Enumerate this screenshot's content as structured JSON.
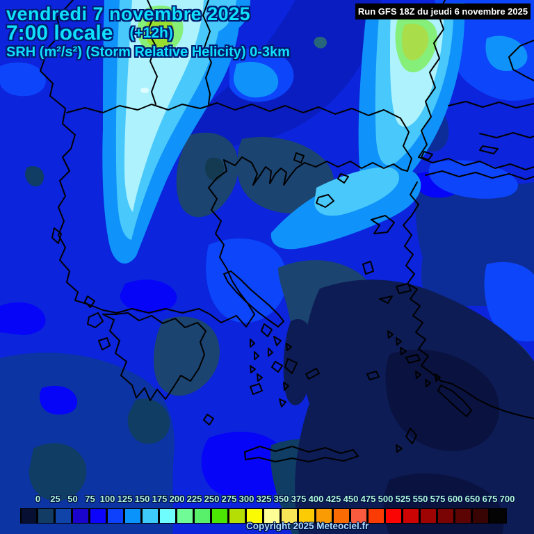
{
  "header": {
    "date_line": "vendredi 7 novembre 2025",
    "time_line": "7:00 locale",
    "offset_label": "(+12h)",
    "param_line": "SRH (m²/s²) (Storm Relative Helicity) 0-3km",
    "run_info": "Run GFS 18Z du jeudi 6 novembre 2025"
  },
  "footer": {
    "copyright": "Copyright 2025 Meteociel.fr"
  },
  "colors": {
    "title_text": "#0fe0fc",
    "title_outline": "#001a70",
    "run_box_bg": "#000000",
    "run_box_text": "#ffffff",
    "scale_label_text": "#aef6da",
    "copyright_text": "#a8dcff",
    "sea_base": "#0b24dc"
  },
  "scale": {
    "unit_values": [
      "0",
      "25",
      "50",
      "75",
      "100",
      "125",
      "150",
      "175",
      "200",
      "225",
      "250",
      "275",
      "300",
      "325",
      "350",
      "375",
      "400",
      "425",
      "450",
      "475",
      "500",
      "525",
      "550",
      "575",
      "600",
      "650",
      "675",
      "700"
    ],
    "box_colors": [
      "#070f33",
      "#123c63",
      "#1144a8",
      "#1a04cc",
      "#0d04fb",
      "#0d41fb",
      "#0a93fb",
      "#3ecbfa",
      "#70fdfd",
      "#70fb96",
      "#58f06a",
      "#4ce402",
      "#b5df04",
      "#fbfb04",
      "#fdfd96",
      "#f8e457",
      "#fdcb04",
      "#fb9b04",
      "#fa6b04",
      "#fa5a3e",
      "#fb3b04",
      "#fb0404",
      "#cd0404",
      "#9e0404",
      "#7a0404",
      "#5c0404",
      "#390404",
      "#040404"
    ]
  }
}
